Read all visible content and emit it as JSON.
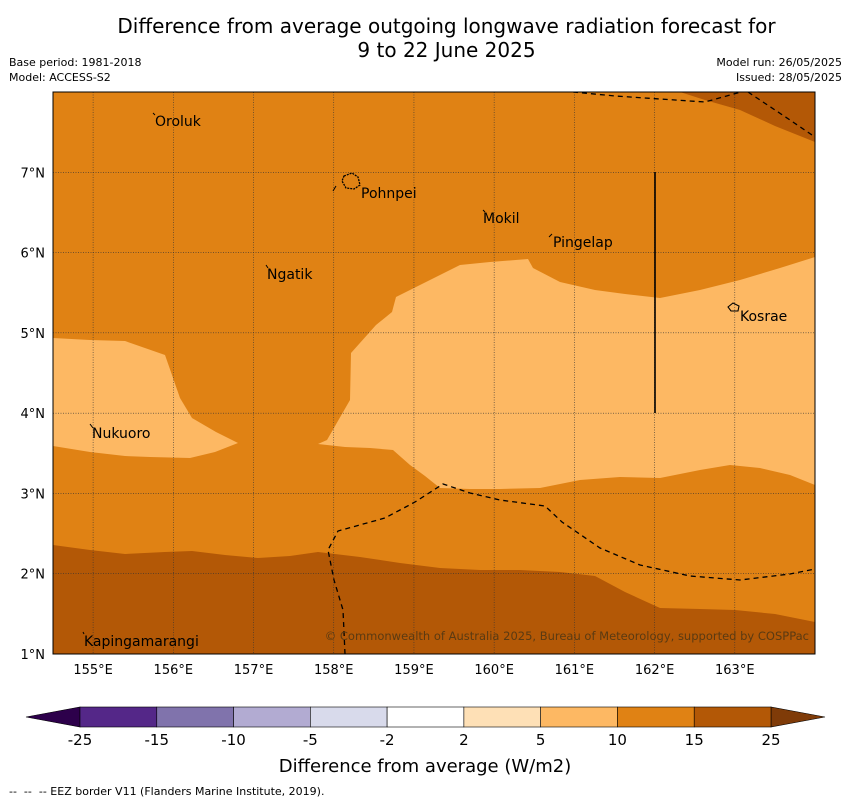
{
  "title_line1": "Difference from average outgoing longwave radiation forecast for",
  "title_line2": "9 to 22 June 2025",
  "meta_left": [
    "Base period: 1981-2018",
    "Model: ACCESS-S2"
  ],
  "meta_right": [
    "Model run: 26/05/2025",
    "Issued: 28/05/2025"
  ],
  "map": {
    "lon_range": [
      154.5,
      164.0
    ],
    "lat_range": [
      1.0,
      8.0
    ],
    "lon_ticks": [
      "155°E",
      "156°E",
      "157°E",
      "158°E",
      "159°E",
      "160°E",
      "161°E",
      "162°E",
      "163°E"
    ],
    "lat_ticks": [
      "1°N",
      "2°N",
      "3°N",
      "4°N",
      "5°N",
      "6°N",
      "7°N"
    ],
    "places": [
      {
        "name": "Oroluk",
        "lon": 155.75,
        "lat": 7.6
      },
      {
        "name": "Pohnpei",
        "lon": 158.3,
        "lat": 6.8
      },
      {
        "name": "Mokil",
        "lon": 159.8,
        "lat": 6.4
      },
      {
        "name": "Pingelap",
        "lon": 160.7,
        "lat": 6.1
      },
      {
        "name": "Ngatik",
        "lon": 157.1,
        "lat": 5.8
      },
      {
        "name": "Kosrae",
        "lon": 163.0,
        "lat": 5.3
      },
      {
        "name": "Nukuoro",
        "lon": 154.95,
        "lat": 3.8
      },
      {
        "name": "Kapingamarangi",
        "lon": 154.85,
        "lat": 1.2
      }
    ],
    "copyright": "© Commonwealth of Australia 2025, Bureau of Meteorology, supported by COSPPac",
    "colors": {
      "c10_15": "#e08214",
      "c5_10": "#fdb863",
      "c15_25": "#b35806"
    }
  },
  "colorbar": {
    "title": "Difference from average (W/m2)",
    "labels": [
      "-25",
      "-15",
      "-10",
      "-5",
      "-2",
      "2",
      "5",
      "10",
      "15",
      "25"
    ],
    "colors": [
      "#542788",
      "#8073ac",
      "#b2abd2",
      "#d8daeb",
      "#ffffff",
      "#fee0b6",
      "#fdb863",
      "#e08214",
      "#b35806"
    ],
    "under_color": "#2d004b",
    "over_color": "#7f3b08"
  },
  "footnote": "--  --  -- EEZ border V11 (Flanders Marine Institute, 2019)."
}
